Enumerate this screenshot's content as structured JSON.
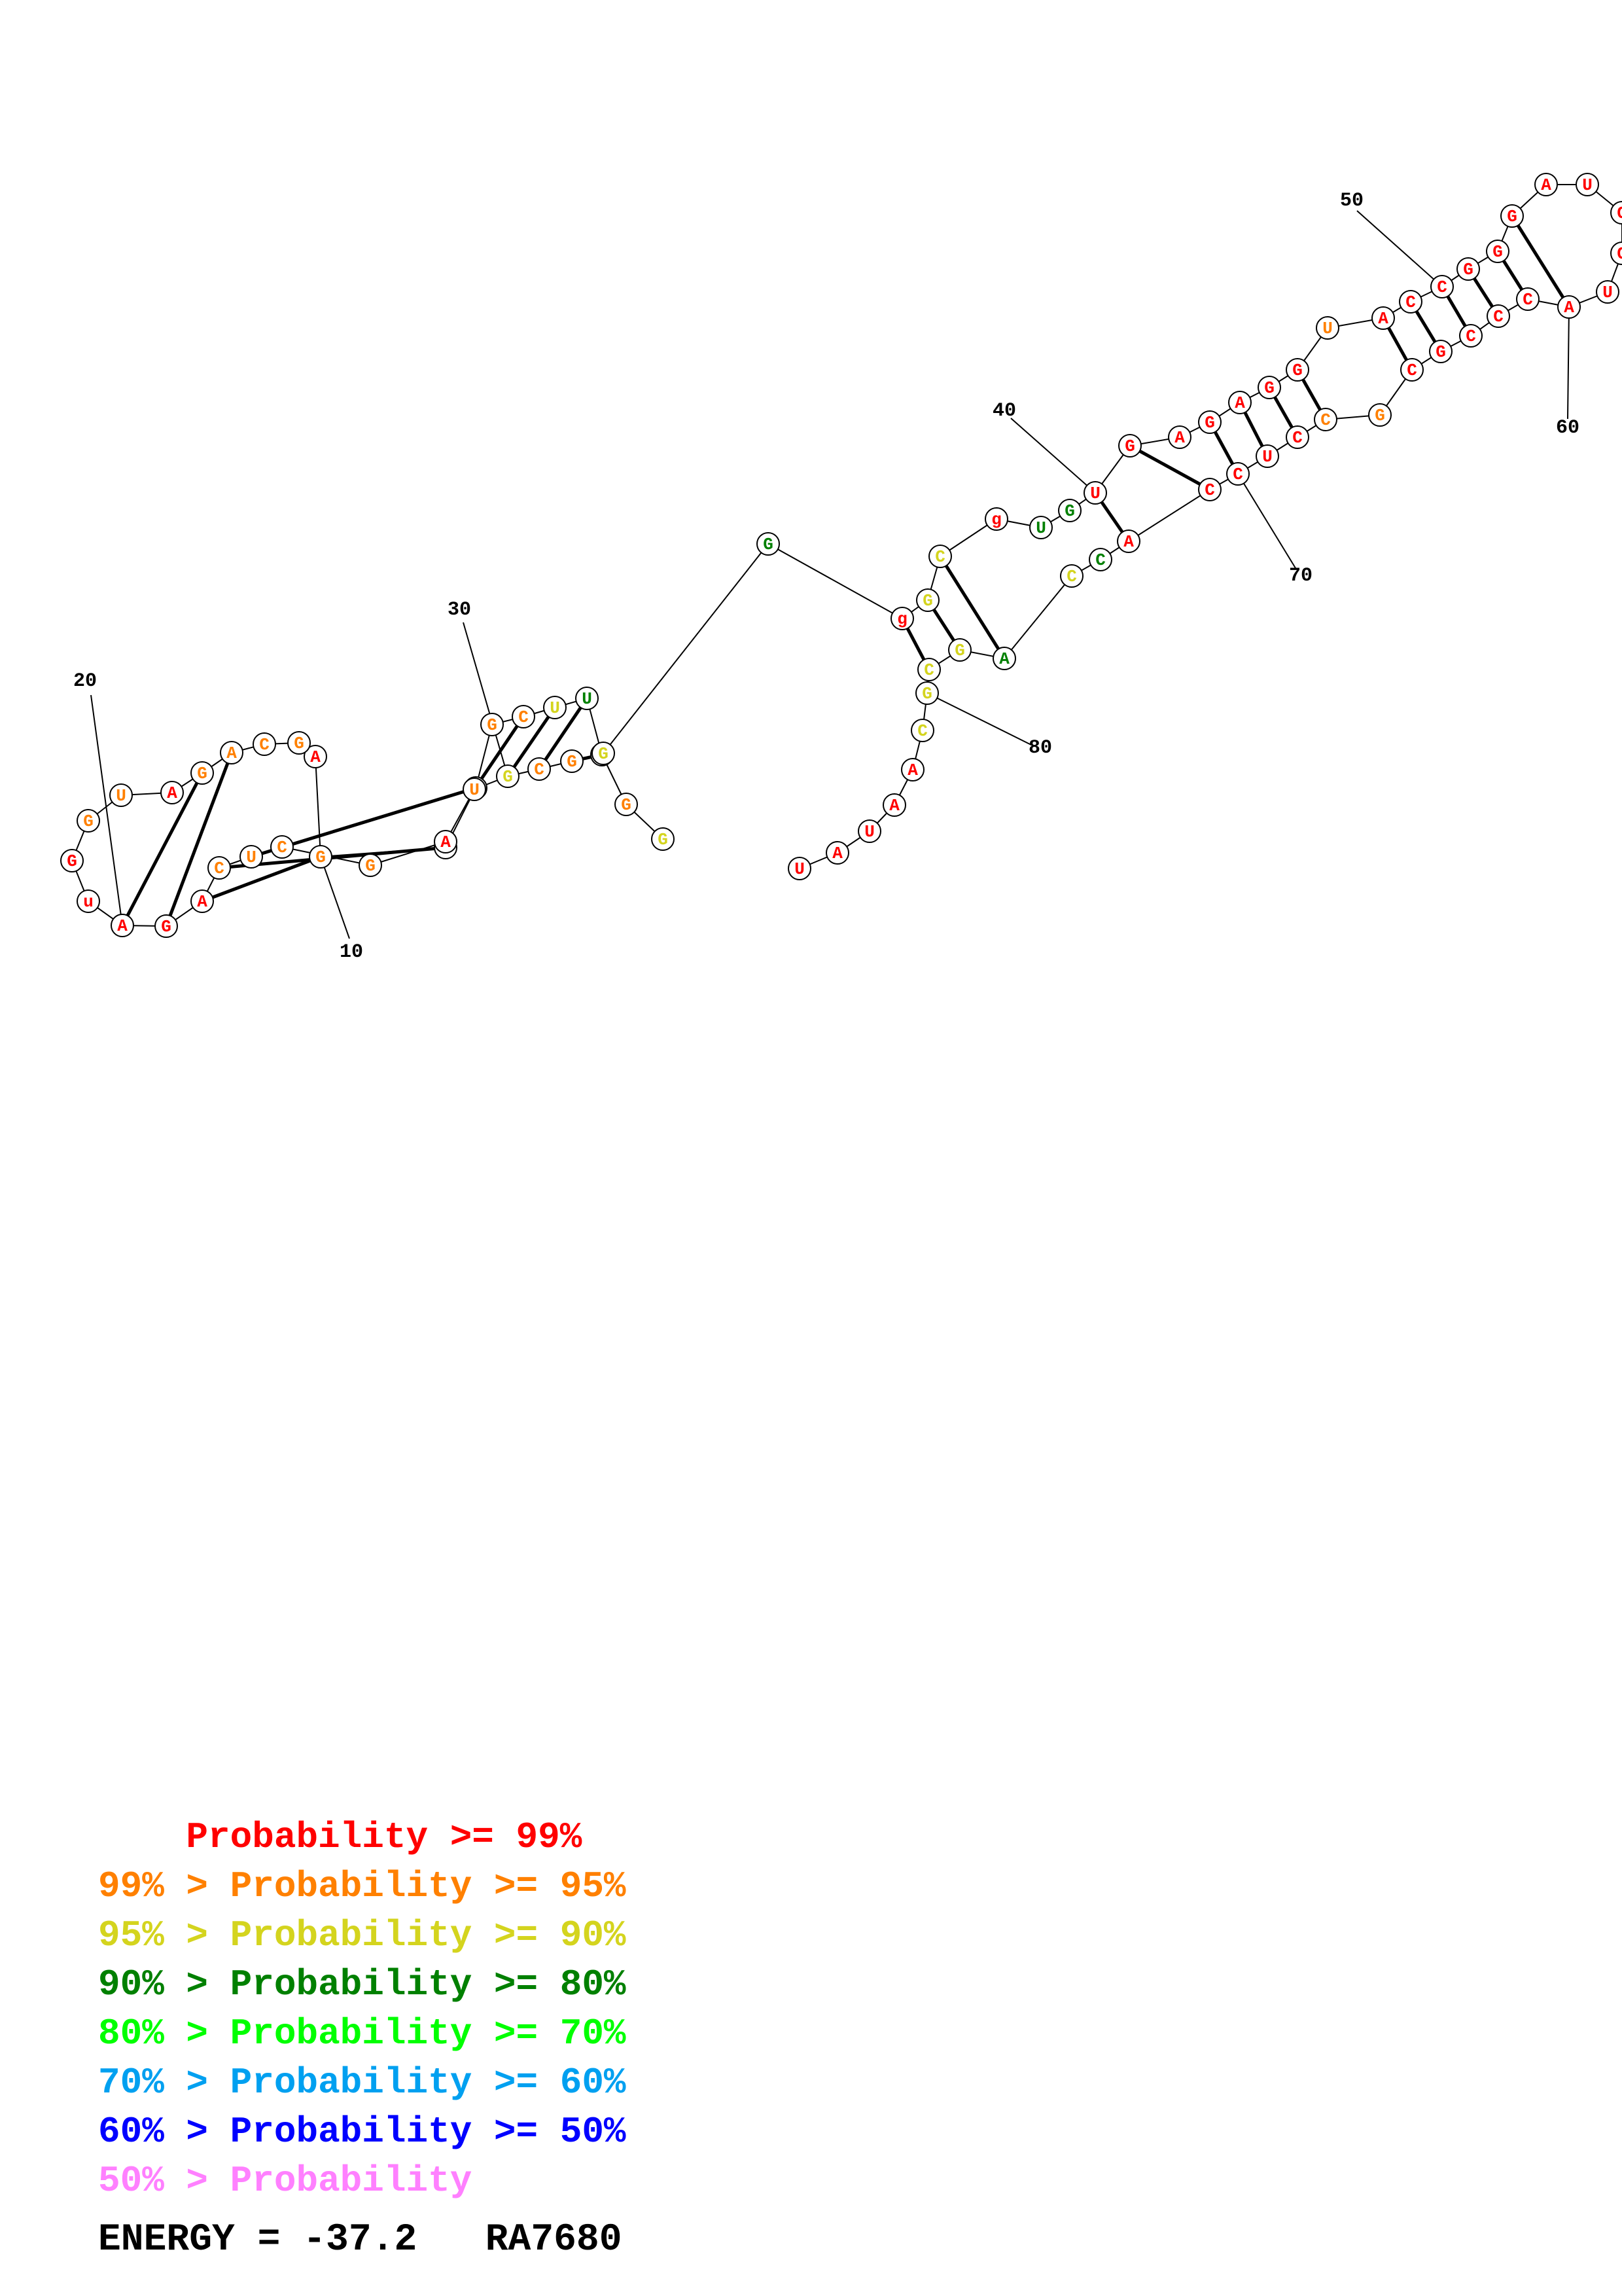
{
  "colors": {
    "p99": "#ff0000",
    "p95": "#ff8000",
    "p90": "#d4d41e",
    "p80": "#008000",
    "p70": "#00ff00",
    "p60": "#00a0f0",
    "p50": "#0000ff",
    "plt50": "#ff80ff"
  },
  "nucleotides": [
    {
      "letter": "G",
      "cls": "p90"
    },
    {
      "letter": "G",
      "cls": "p95"
    },
    {
      "letter": "G",
      "cls": "p80"
    },
    {
      "letter": "U",
      "cls": "p80"
    },
    {
      "letter": "U",
      "cls": "p90"
    },
    {
      "letter": "C",
      "cls": "p95"
    },
    {
      "letter": "G",
      "cls": "p95"
    },
    {
      "letter": "C",
      "cls": "p90"
    },
    {
      "letter": "C",
      "cls": "p95"
    },
    {
      "letter": "G",
      "cls": "p95"
    },
    {
      "letter": "A",
      "cls": "p99"
    },
    {
      "letter": "G",
      "cls": "p95"
    },
    {
      "letter": "C",
      "cls": "p95"
    },
    {
      "letter": "A",
      "cls": "p95"
    },
    {
      "letter": "G",
      "cls": "p95"
    },
    {
      "letter": "A",
      "cls": "p99"
    },
    {
      "letter": "U",
      "cls": "p95"
    },
    {
      "letter": "G",
      "cls": "p95"
    },
    {
      "letter": "G",
      "cls": "p99"
    },
    {
      "letter": "u",
      "cls": "p99"
    },
    {
      "letter": "A",
      "cls": "p99"
    },
    {
      "letter": "G",
      "cls": "p99"
    },
    {
      "letter": "A",
      "cls": "p99"
    },
    {
      "letter": "C",
      "cls": "p95"
    },
    {
      "letter": "U",
      "cls": "p95"
    },
    {
      "letter": "C",
      "cls": "p95"
    },
    {
      "letter": "G",
      "cls": "p95"
    },
    {
      "letter": "A",
      "cls": "p99"
    },
    {
      "letter": "U",
      "cls": "p95"
    },
    {
      "letter": "G",
      "cls": "p90"
    },
    {
      "letter": "C",
      "cls": "p95"
    },
    {
      "letter": "G",
      "cls": "p95"
    },
    {
      "letter": "G",
      "cls": "p90"
    },
    {
      "letter": "G",
      "cls": "p80"
    },
    {
      "letter": "g",
      "cls": "p99"
    },
    {
      "letter": "G",
      "cls": "p90"
    },
    {
      "letter": "C",
      "cls": "p90"
    },
    {
      "letter": "g",
      "cls": "p99"
    },
    {
      "letter": "U",
      "cls": "p80"
    },
    {
      "letter": "G",
      "cls": "p80"
    },
    {
      "letter": "U",
      "cls": "p99"
    },
    {
      "letter": "G",
      "cls": "p99"
    },
    {
      "letter": "A",
      "cls": "p99"
    },
    {
      "letter": "G",
      "cls": "p99"
    },
    {
      "letter": "A",
      "cls": "p99"
    },
    {
      "letter": "G",
      "cls": "p99"
    },
    {
      "letter": "G",
      "cls": "p99"
    },
    {
      "letter": "U",
      "cls": "p95"
    },
    {
      "letter": "A",
      "cls": "p99"
    },
    {
      "letter": "C",
      "cls": "p99"
    },
    {
      "letter": "C",
      "cls": "p99"
    },
    {
      "letter": "G",
      "cls": "p99"
    },
    {
      "letter": "G",
      "cls": "p99"
    },
    {
      "letter": "G",
      "cls": "p99"
    },
    {
      "letter": "A",
      "cls": "p99"
    },
    {
      "letter": "U",
      "cls": "p99"
    },
    {
      "letter": "C",
      "cls": "p99"
    },
    {
      "letter": "C",
      "cls": "p99"
    },
    {
      "letter": "U",
      "cls": "p99"
    },
    {
      "letter": "A",
      "cls": "p99"
    },
    {
      "letter": "C",
      "cls": "p99"
    },
    {
      "letter": "C",
      "cls": "p99"
    },
    {
      "letter": "C",
      "cls": "p99"
    },
    {
      "letter": "G",
      "cls": "p99"
    },
    {
      "letter": "C",
      "cls": "p99"
    },
    {
      "letter": "G",
      "cls": "p95"
    },
    {
      "letter": "C",
      "cls": "p95"
    },
    {
      "letter": "C",
      "cls": "p99"
    },
    {
      "letter": "U",
      "cls": "p99"
    },
    {
      "letter": "C",
      "cls": "p99"
    },
    {
      "letter": "C",
      "cls": "p99"
    },
    {
      "letter": "A",
      "cls": "p99"
    },
    {
      "letter": "C",
      "cls": "p80"
    },
    {
      "letter": "C",
      "cls": "p90"
    },
    {
      "letter": "A",
      "cls": "p80"
    },
    {
      "letter": "G",
      "cls": "p90"
    },
    {
      "letter": "C",
      "cls": "p90"
    },
    {
      "letter": "G",
      "cls": "p90"
    },
    {
      "letter": "C",
      "cls": "p90"
    },
    {
      "letter": "A",
      "cls": "p99"
    },
    {
      "letter": "A",
      "cls": "p99"
    },
    {
      "letter": "U",
      "cls": "p99"
    },
    {
      "letter": "A",
      "cls": "p99"
    },
    {
      "letter": "U",
      "cls": "p99"
    }
  ],
  "pairs": [
    [
      3,
      32
    ],
    [
      4,
      31
    ],
    [
      5,
      30
    ],
    [
      6,
      29
    ],
    [
      8,
      25
    ],
    [
      9,
      24
    ],
    [
      10,
      23
    ],
    [
      14,
      22
    ],
    [
      15,
      21
    ],
    [
      35,
      77
    ],
    [
      36,
      76
    ],
    [
      37,
      75
    ],
    [
      41,
      72
    ],
    [
      42,
      71
    ],
    [
      44,
      70
    ],
    [
      45,
      69
    ],
    [
      46,
      68
    ],
    [
      47,
      67
    ],
    [
      49,
      65
    ],
    [
      50,
      64
    ],
    [
      51,
      63
    ],
    [
      52,
      62
    ],
    [
      53,
      61
    ],
    [
      54,
      60
    ]
  ],
  "position_labels": [
    {
      "value": "10",
      "index": 10
    },
    {
      "value": "20",
      "index": 20
    },
    {
      "value": "30",
      "index": 30
    },
    {
      "value": "40",
      "index": 40
    },
    {
      "value": "50",
      "index": 50
    },
    {
      "value": "60",
      "index": 60
    },
    {
      "value": "70",
      "index": 70
    },
    {
      "value": "80",
      "index": 80
    }
  ],
  "legend": [
    {
      "prefix": "    ",
      "text": "Probability >= 99%",
      "cls": "p99"
    },
    {
      "prefix": "99% > ",
      "text": "Probability >= 95%",
      "cls": "p95"
    },
    {
      "prefix": "95% > ",
      "text": "Probability >= 90%",
      "cls": "p90"
    },
    {
      "prefix": "90% > ",
      "text": "Probability >= 80%",
      "cls": "p80"
    },
    {
      "prefix": "80% > ",
      "text": "Probability >= 70%",
      "cls": "p70"
    },
    {
      "prefix": "70% > ",
      "text": "Probability >= 60%",
      "cls": "p60"
    },
    {
      "prefix": "60% > ",
      "text": "Probability >= 50%",
      "cls": "p50"
    },
    {
      "prefix": "50% > ",
      "text": "Probability",
      "cls": "plt50"
    }
  ],
  "footer": {
    "energy": "ENERGY = -37.2",
    "name": "RA7680"
  }
}
